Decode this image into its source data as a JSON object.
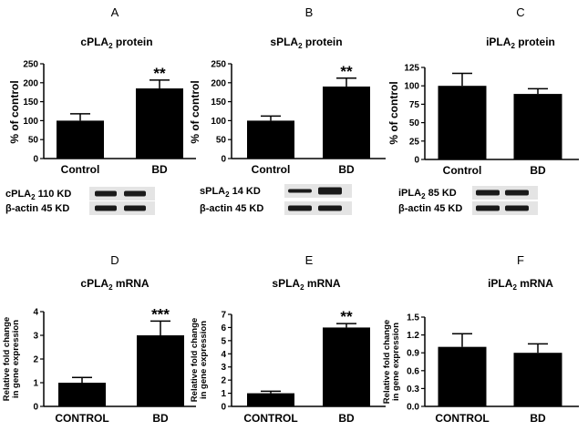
{
  "panels": [
    {
      "letter": "A",
      "title": "cPLA",
      "sub": "2",
      "title_tail": " protein"
    },
    {
      "letter": "B",
      "title": "sPLA",
      "sub": "2",
      "title_tail": " protein"
    },
    {
      "letter": "C",
      "title": "iPLA",
      "sub": "2",
      "title_tail": " protein"
    },
    {
      "letter": "D",
      "title": "cPLA",
      "sub": "2",
      "title_tail": " mRNA"
    },
    {
      "letter": "E",
      "title": "sPLA",
      "sub": "2",
      "title_tail": " mRNA"
    },
    {
      "letter": "F",
      "title": "iPLA",
      "sub": "2",
      "title_tail": " mRNA"
    }
  ],
  "blots": [
    {
      "target_name": "cPLA",
      "target_sub": "2",
      "target_size": " 110 KD",
      "actin_label": "β-actin 45 KD"
    },
    {
      "target_name": "sPLA",
      "target_sub": "2",
      "target_size": " 14 KD",
      "actin_label": "β-actin 45 KD"
    },
    {
      "target_name": "iPLA",
      "target_sub": "2",
      "target_size": " 85 KD",
      "actin_label": "β-actin 45 KD"
    }
  ],
  "colors": {
    "bar": "#000000",
    "band": "#1a1a1a",
    "blot_bg": "#e4e4e4"
  },
  "chart_data": [
    {
      "type": "bar",
      "title": "cPLA2 protein",
      "categories": [
        "Control",
        "BD"
      ],
      "values": [
        100,
        185
      ],
      "errors": [
        18,
        22
      ],
      "annotations": [
        "",
        "**"
      ],
      "ylabel": "% of control",
      "ylim": [
        0,
        250
      ],
      "yticks": [
        "0",
        "50",
        "100",
        "150",
        "200",
        "250"
      ]
    },
    {
      "type": "bar",
      "title": "sPLA2 protein",
      "categories": [
        "Control",
        "BD"
      ],
      "values": [
        100,
        190
      ],
      "errors": [
        12,
        22
      ],
      "annotations": [
        "",
        "**"
      ],
      "ylabel": "% of control",
      "ylim": [
        0,
        250
      ],
      "yticks": [
        "0",
        "50",
        "100",
        "150",
        "200",
        "250"
      ]
    },
    {
      "type": "bar",
      "title": "iPLA2 protein",
      "categories": [
        "Control",
        "BD"
      ],
      "values": [
        100,
        89
      ],
      "errors": [
        17,
        7
      ],
      "annotations": [
        "",
        ""
      ],
      "ylabel": "% of control",
      "ylim": [
        0,
        125
      ],
      "yticks": [
        "0",
        "25",
        "50",
        "75",
        "100",
        "125"
      ]
    },
    {
      "type": "bar",
      "title": "cPLA2 mRNA",
      "categories": [
        "CONTROL",
        "BD"
      ],
      "values": [
        1.0,
        3.0
      ],
      "errors": [
        0.22,
        0.6
      ],
      "annotations": [
        "",
        "***"
      ],
      "ylabel": "Relative fold change in gene expression",
      "ylim": [
        0,
        4
      ],
      "yticks": [
        "0",
        "1",
        "2",
        "3",
        "4"
      ]
    },
    {
      "type": "bar",
      "title": "sPLA2 mRNA",
      "categories": [
        "CONTROL",
        "BD"
      ],
      "values": [
        1.0,
        6.0
      ],
      "errors": [
        0.15,
        0.3
      ],
      "annotations": [
        "",
        "**"
      ],
      "ylabel": "Relative fold change in gene expression",
      "ylim": [
        0,
        7
      ],
      "yticks": [
        "0",
        "1",
        "2",
        "3",
        "4",
        "5",
        "6",
        "7"
      ]
    },
    {
      "type": "bar",
      "title": "iPLA2 mRNA",
      "categories": [
        "CONTROL",
        "BD"
      ],
      "values": [
        1.0,
        0.9
      ],
      "errors": [
        0.22,
        0.15
      ],
      "annotations": [
        "",
        ""
      ],
      "ylabel": "Relative fold change in gene expression",
      "ylim": [
        0,
        1.5
      ],
      "yticks": [
        "0.0",
        "0.3",
        "0.6",
        "0.9",
        "1.2",
        "1.5"
      ]
    }
  ]
}
